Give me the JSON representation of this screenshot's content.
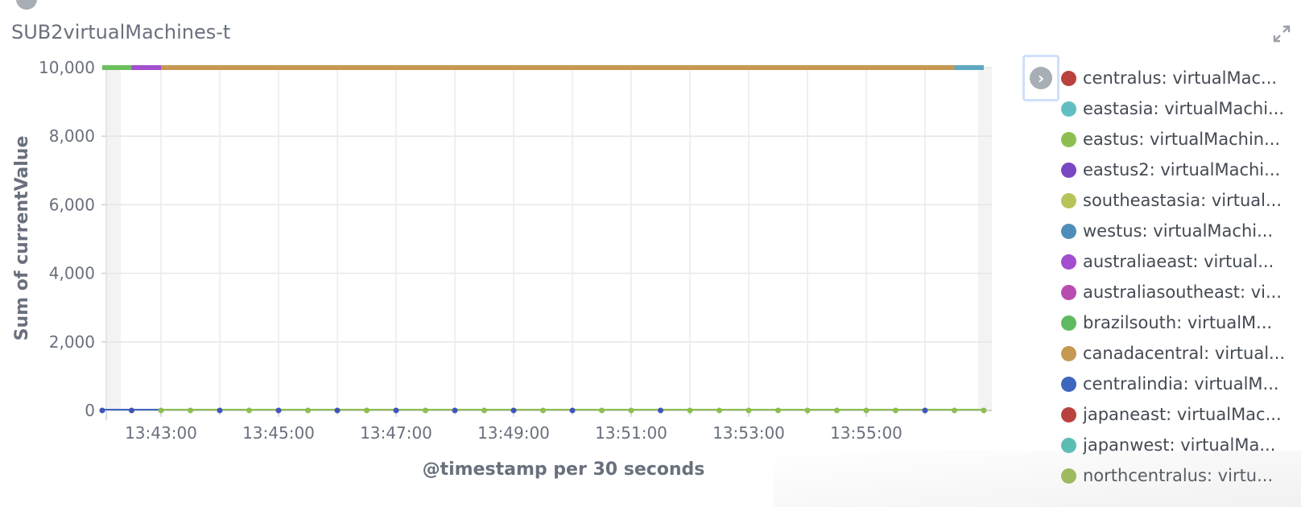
{
  "panel": {
    "title": "SUB2virtualMachines-t"
  },
  "chart_data": {
    "type": "line",
    "title": "SUB2virtualMachines-t",
    "xlabel": "@timestamp per 30 seconds",
    "ylabel": "Sum of currentValue",
    "ylim": [
      0,
      10000
    ],
    "y_ticks": [
      "0",
      "2,000",
      "4,000",
      "6,000",
      "8,000",
      "10,000"
    ],
    "x_ticks": [
      "13:43:00",
      "13:45:00",
      "13:47:00",
      "13:49:00",
      "13:51:00",
      "13:53:00",
      "13:55:00"
    ],
    "grid": true,
    "legend_position": "right",
    "top_segments": [
      {
        "from": "13:42:00",
        "to": "13:42:30",
        "color": "#6DBF5C",
        "series": "brazilsouth"
      },
      {
        "from": "13:42:30",
        "to": "13:43:00",
        "color": "#A24ECF",
        "series": "australiaeast"
      },
      {
        "from": "13:43:00",
        "to": "13:56:30",
        "color": "#C69852",
        "series": "canadacentral"
      },
      {
        "from": "13:56:30",
        "to": "13:57:00",
        "color": "#5FA8C1",
        "series": "westus"
      }
    ],
    "baseline_points": {
      "value": 0,
      "from": "13:42:00",
      "to": "13:57:00",
      "step_seconds": 30
    }
  },
  "legend": {
    "toggle_icon": "chevron-right-icon",
    "items": [
      {
        "label": "centralus: virtualMac...",
        "color": "#B9423F"
      },
      {
        "label": "eastasia: virtualMachi...",
        "color": "#60BFC1"
      },
      {
        "label": "eastus: virtualMachin...",
        "color": "#8DBE50"
      },
      {
        "label": "eastus2: virtualMachi...",
        "color": "#7A47C2"
      },
      {
        "label": "southeastasia: virtual...",
        "color": "#B6C458"
      },
      {
        "label": "westus: virtualMachi...",
        "color": "#4F8EB8"
      },
      {
        "label": "australiaeast: virtual...",
        "color": "#A24ECF"
      },
      {
        "label": "australiasoutheast: vi...",
        "color": "#B84DB0"
      },
      {
        "label": "brazilsouth: virtualM...",
        "color": "#5FB960"
      },
      {
        "label": "canadacentral: virtual...",
        "color": "#C69852"
      },
      {
        "label": "centralindia: virtualM...",
        "color": "#3F66BE"
      },
      {
        "label": "japaneast: virtualMac...",
        "color": "#B9423F"
      },
      {
        "label": "japanwest: virtualMa...",
        "color": "#5BBDB3"
      },
      {
        "label": "northcentralus: virtu...",
        "color": "#98B84F"
      }
    ]
  }
}
